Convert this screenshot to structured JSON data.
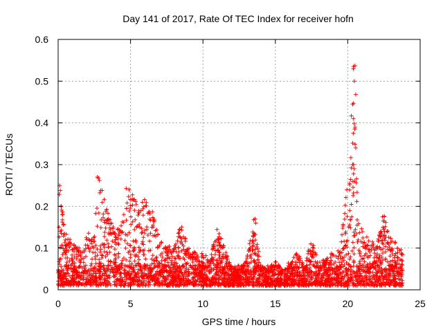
{
  "chart_data": {
    "type": "scatter",
    "title": "Day 141 of 2017, Rate Of TEC Index for receiver hofn",
    "xlabel": "GPS time / hours",
    "ylabel": "ROTI / TECUs",
    "xlim": [
      0,
      25
    ],
    "ylim": [
      0,
      0.6
    ],
    "xticks": [
      0,
      5,
      10,
      15,
      20,
      25
    ],
    "yticks": [
      0,
      0.1,
      0.2,
      0.3,
      0.4,
      0.5,
      0.6
    ],
    "xtick_labels": [
      "0",
      "5",
      "10",
      "15",
      "20",
      "25"
    ],
    "ytick_labels": [
      "0",
      "0.1",
      "0.2",
      "0.3",
      "0.4",
      "0.5",
      "0.6"
    ],
    "grid": true,
    "marker": "+",
    "color": "#ff0000",
    "x_range": [
      0,
      23.8
    ],
    "envelope": {
      "description": "approximate upper envelope of ROTI values vs GPS hour",
      "x": [
        0.0,
        0.2,
        0.5,
        1.0,
        1.5,
        2.0,
        2.5,
        2.8,
        3.0,
        3.3,
        3.6,
        4.0,
        4.5,
        4.8,
        5.2,
        5.6,
        6.0,
        6.5,
        7.0,
        7.5,
        8.0,
        8.5,
        9.0,
        9.5,
        10.0,
        10.5,
        11.0,
        11.5,
        12.0,
        12.5,
        13.0,
        13.5,
        14.0,
        14.5,
        15.0,
        15.5,
        16.0,
        16.5,
        17.0,
        17.5,
        18.0,
        18.5,
        19.0,
        19.5,
        19.8,
        20.1,
        20.4,
        20.7,
        21.0,
        21.5,
        22.0,
        22.5,
        23.0,
        23.5,
        23.8
      ],
      "ymax": [
        0.25,
        0.22,
        0.14,
        0.11,
        0.1,
        0.13,
        0.16,
        0.27,
        0.25,
        0.2,
        0.17,
        0.14,
        0.18,
        0.24,
        0.23,
        0.2,
        0.22,
        0.19,
        0.12,
        0.11,
        0.1,
        0.16,
        0.1,
        0.09,
        0.09,
        0.08,
        0.15,
        0.1,
        0.06,
        0.05,
        0.07,
        0.17,
        0.06,
        0.05,
        0.07,
        0.05,
        0.07,
        0.09,
        0.06,
        0.12,
        0.07,
        0.08,
        0.09,
        0.1,
        0.2,
        0.3,
        0.54,
        0.17,
        0.15,
        0.12,
        0.11,
        0.18,
        0.12,
        0.11,
        0.1
      ],
      "ymin_typical": 0.01
    },
    "notable_points": [
      {
        "x": 20.4,
        "y": 0.535
      },
      {
        "x": 20.5,
        "y": 0.537
      },
      {
        "x": 20.45,
        "y": 0.5
      },
      {
        "x": 20.55,
        "y": 0.468
      },
      {
        "x": 20.4,
        "y": 0.447
      },
      {
        "x": 20.4,
        "y": 0.41
      },
      {
        "x": 20.45,
        "y": 0.398
      },
      {
        "x": 20.4,
        "y": 0.3
      },
      {
        "x": 20.45,
        "y": 0.29
      },
      {
        "x": 20.4,
        "y": 0.278
      },
      {
        "x": 20.4,
        "y": 0.232
      },
      {
        "x": 2.7,
        "y": 0.27
      },
      {
        "x": 2.85,
        "y": 0.262
      },
      {
        "x": 4.7,
        "y": 0.243
      },
      {
        "x": 4.9,
        "y": 0.24
      },
      {
        "x": 0.1,
        "y": 0.25
      },
      {
        "x": 0.15,
        "y": 0.238
      },
      {
        "x": 13.6,
        "y": 0.17
      },
      {
        "x": 13.65,
        "y": 0.16
      },
      {
        "x": 22.4,
        "y": 0.175
      },
      {
        "x": 22.45,
        "y": 0.165
      }
    ]
  }
}
